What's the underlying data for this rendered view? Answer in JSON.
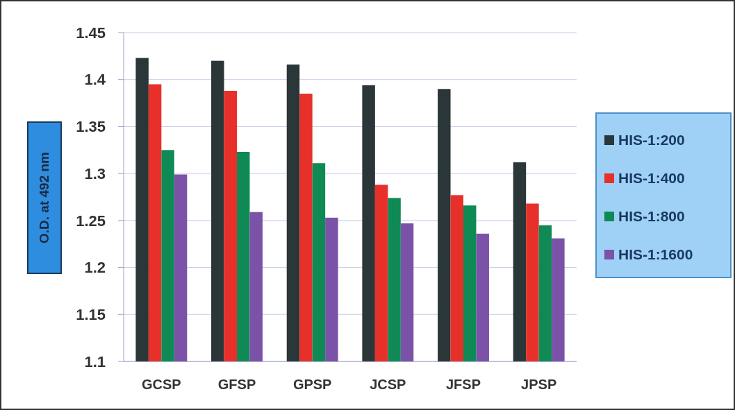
{
  "chart_data": {
    "type": "bar",
    "ylabel": "O.D. at 492 nm",
    "categories": [
      "GCSP",
      "GFSP",
      "GPSP",
      "JCSP",
      "JFSP",
      "JPSP"
    ],
    "series": [
      {
        "name": "HIS-1:200",
        "color": "#2b3638",
        "values": [
          1.423,
          1.42,
          1.416,
          1.394,
          1.39,
          1.312
        ]
      },
      {
        "name": "HIS-1:400",
        "color": "#e8302a",
        "values": [
          1.395,
          1.388,
          1.385,
          1.288,
          1.277,
          1.268
        ]
      },
      {
        "name": "HIS-1:800",
        "color": "#0f8a55",
        "values": [
          1.325,
          1.323,
          1.311,
          1.274,
          1.266,
          1.245
        ]
      },
      {
        "name": "HIS-1:1600",
        "color": "#7a52a8",
        "values": [
          1.299,
          1.259,
          1.253,
          1.247,
          1.236,
          1.231
        ]
      }
    ],
    "ylim": [
      1.1,
      1.45
    ],
    "yticks": [
      1.1,
      1.15,
      1.2,
      1.25,
      1.3,
      1.35,
      1.4,
      1.45
    ],
    "grid": "y",
    "legend": "right"
  }
}
